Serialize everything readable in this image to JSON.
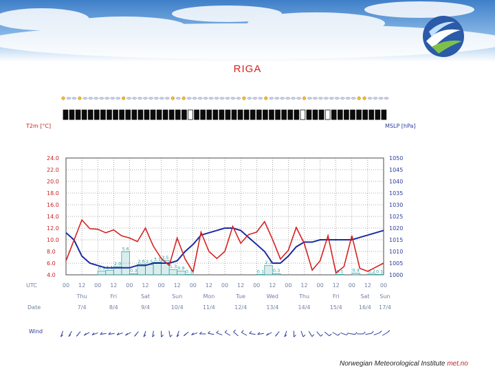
{
  "page": {
    "title": "RIGA",
    "footer_text": "Norwegian Meteorological Institute",
    "footer_link": "met.no"
  },
  "colors": {
    "temp": "#d42020",
    "pressure": "#1a2aa0",
    "precip": "#2e9a9a",
    "grid": "#333333"
  },
  "chart_data": {
    "type": "line",
    "title": "RIGA",
    "left_axis_label": "T2m [°C]",
    "right_axis_label": "MSLP [hPa]",
    "left_ticks": [
      "24.0",
      "22.0",
      "20.0",
      "18.0",
      "16.0",
      "14.0",
      "12.0",
      "10.0",
      "8.0",
      "6.0",
      "4.0"
    ],
    "right_ticks": [
      "1050",
      "1045",
      "1040",
      "1035",
      "1030",
      "1025",
      "1020",
      "1015",
      "1010",
      "1005",
      "1000"
    ],
    "ylim_temp": [
      4,
      24
    ],
    "ylim_pressure": [
      1000,
      1050
    ],
    "utc_label": "UTC",
    "utc_hours": [
      "00",
      "12",
      "00",
      "12",
      "00",
      "12",
      "00",
      "12",
      "00",
      "12",
      "00",
      "12",
      "00",
      "12",
      "00",
      "12",
      "00",
      "12",
      "00",
      "12",
      "00"
    ],
    "date_row_label": "Date",
    "days": [
      {
        "day": "Thu",
        "date": "7/4"
      },
      {
        "day": "Fri",
        "date": "8/4"
      },
      {
        "day": "Sat",
        "date": "9/4"
      },
      {
        "day": "Sun",
        "date": "10/4"
      },
      {
        "day": "Mon",
        "date": "11/4"
      },
      {
        "day": "Tue",
        "date": "12/4"
      },
      {
        "day": "Wed",
        "date": "13/4"
      },
      {
        "day": "Thu",
        "date": "14/4"
      },
      {
        "day": "Fri",
        "date": "15/4"
      },
      {
        "day": "Sat",
        "date": "16/4"
      },
      {
        "day": "Sun",
        "date": "17/4"
      }
    ],
    "wind_label": "Wind",
    "x_hours_range": [
      0,
      240
    ],
    "series": [
      {
        "name": "T2m [°C]",
        "axis": "left",
        "x": [
          0,
          12,
          18,
          24,
          30,
          36,
          42,
          48,
          54,
          60,
          66,
          72,
          78,
          84,
          90,
          96,
          102,
          108,
          114,
          120,
          126,
          132,
          138,
          144,
          150,
          156,
          162,
          168,
          174,
          180,
          186,
          192,
          198,
          204,
          210,
          216,
          222,
          228,
          234,
          240
        ],
        "values": [
          6.4,
          13.4,
          11.9,
          11.8,
          11.2,
          11.7,
          10.7,
          10.3,
          9.7,
          12.0,
          8.9,
          6.8,
          5.6,
          10.3,
          6.7,
          4.5,
          11.3,
          8.0,
          6.8,
          8.0,
          12.3,
          9.4,
          10.9,
          11.3,
          13.1,
          10.1,
          6.7,
          8.2,
          12.1,
          9.4,
          4.8,
          6.4,
          10.7,
          4.3,
          5.4,
          10.7,
          5.1,
          4.6,
          5.3,
          6.0
        ]
      },
      {
        "name": "MSLP [hPa]",
        "axis": "right",
        "x": [
          0,
          6,
          12,
          18,
          24,
          30,
          36,
          42,
          48,
          54,
          60,
          66,
          72,
          78,
          84,
          90,
          96,
          102,
          108,
          114,
          120,
          126,
          132,
          138,
          144,
          150,
          156,
          162,
          168,
          174,
          180,
          186,
          192,
          198,
          204,
          210,
          216,
          222,
          228,
          234,
          240
        ],
        "values": [
          1018,
          1015,
          1008,
          1005,
          1004,
          1003,
          1003,
          1003,
          1003,
          1004,
          1004,
          1005,
          1005,
          1005,
          1006,
          1010,
          1013,
          1017,
          1018,
          1019,
          1020,
          1020,
          1019,
          1016,
          1013,
          1010,
          1005,
          1005,
          1008,
          1012,
          1014,
          1014,
          1015,
          1015,
          1015,
          1015,
          1015,
          1016,
          1017,
          1018,
          1019
        ]
      }
    ],
    "precipitation": {
      "unit": "mm",
      "bars": [
        {
          "x": 24,
          "dx": 6,
          "value": 0.9,
          "label": "0.9"
        },
        {
          "x": 30,
          "dx": 6,
          "value": 1.1,
          "label": "1.1"
        },
        {
          "x": 36,
          "dx": 6,
          "value": 2.0,
          "label": "2.0"
        },
        {
          "x": 42,
          "dx": 6,
          "value": 5.6,
          "label": "5.6"
        },
        {
          "x": 48,
          "dx": 6,
          "value": 0.3,
          "label": "0.3"
        },
        {
          "x": 54,
          "dx": 6,
          "value": 2.6,
          "label": "2.6"
        },
        {
          "x": 60,
          "dx": 6,
          "value": 2.5,
          "label": "2.5"
        },
        {
          "x": 66,
          "dx": 6,
          "value": 3.1,
          "label": "3.1"
        },
        {
          "x": 72,
          "dx": 6,
          "value": 3.5,
          "label": "3.5"
        },
        {
          "x": 78,
          "dx": 6,
          "value": 1.3,
          "label": "1.3"
        },
        {
          "x": 84,
          "dx": 6,
          "value": 0.9,
          "label": "0.9"
        },
        {
          "x": 90,
          "dx": 6,
          "value": 0.1,
          "label": "0.1"
        },
        {
          "x": 144,
          "dx": 6,
          "value": 0.1,
          "label": "0.1"
        },
        {
          "x": 150,
          "dx": 6,
          "value": 2.3,
          "label": "2.3"
        },
        {
          "x": 156,
          "dx": 6,
          "value": 0.3,
          "label": "0.3"
        },
        {
          "x": 204,
          "dx": 6,
          "value": 0.1,
          "label": "0.1"
        },
        {
          "x": 216,
          "dx": 6,
          "value": 0.4,
          "label": "0.4"
        },
        {
          "x": 228,
          "dx": 6,
          "value": 0.2,
          "label": "0.2"
        },
        {
          "x": 234,
          "dx": 6,
          "value": 0.1,
          "label": "0.1"
        }
      ]
    },
    "wind_directions_deg": [
      200,
      210,
      220,
      240,
      250,
      260,
      260,
      250,
      240,
      220,
      200,
      190,
      180,
      170,
      200,
      230,
      250,
      270,
      280,
      290,
      300,
      310,
      300,
      280,
      260,
      240,
      220,
      200,
      180,
      160,
      150,
      140,
      130,
      120,
      110,
      100,
      90,
      80,
      70,
      60
    ]
  }
}
